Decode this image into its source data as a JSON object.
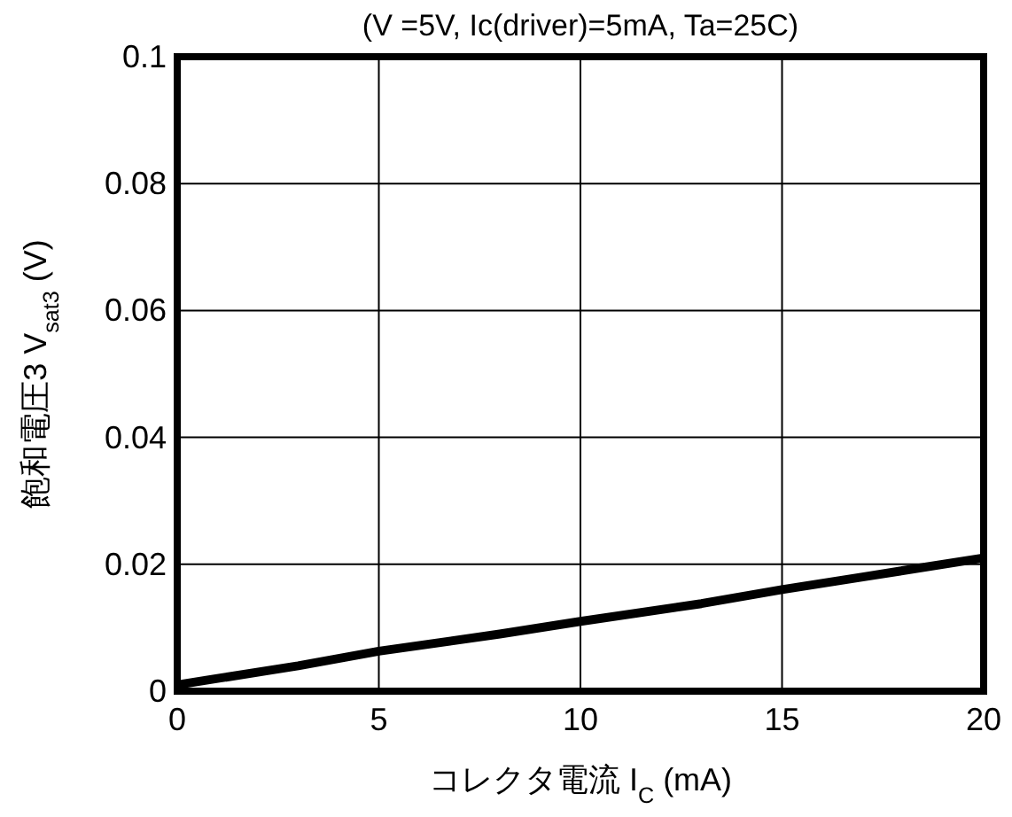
{
  "chart_data": {
    "type": "line",
    "title": "(V =5V, Ic(driver)=5mA, Ta=25C)",
    "xlabel": "コレクタ電流  I$_{C}$ (mA)",
    "ylabel": "飽和電圧3  V$_{sat3}$ (V)",
    "x": [
      0,
      1,
      3,
      5,
      8,
      10,
      13,
      15,
      17,
      20
    ],
    "series": [
      {
        "color": "#000000",
        "values": [
          0.001,
          0.002,
          0.004,
          0.0063,
          0.009,
          0.011,
          0.0138,
          0.016,
          0.018,
          0.021
        ]
      }
    ],
    "xlim": [
      0,
      20
    ],
    "xticks": [
      0,
      5,
      10,
      15,
      20
    ],
    "ylim": [
      0,
      0.1
    ],
    "yticks": [
      0,
      0.02,
      0.04,
      0.06,
      0.08,
      0.1
    ],
    "grid": true,
    "marker": "none",
    "line_style": "solid"
  }
}
